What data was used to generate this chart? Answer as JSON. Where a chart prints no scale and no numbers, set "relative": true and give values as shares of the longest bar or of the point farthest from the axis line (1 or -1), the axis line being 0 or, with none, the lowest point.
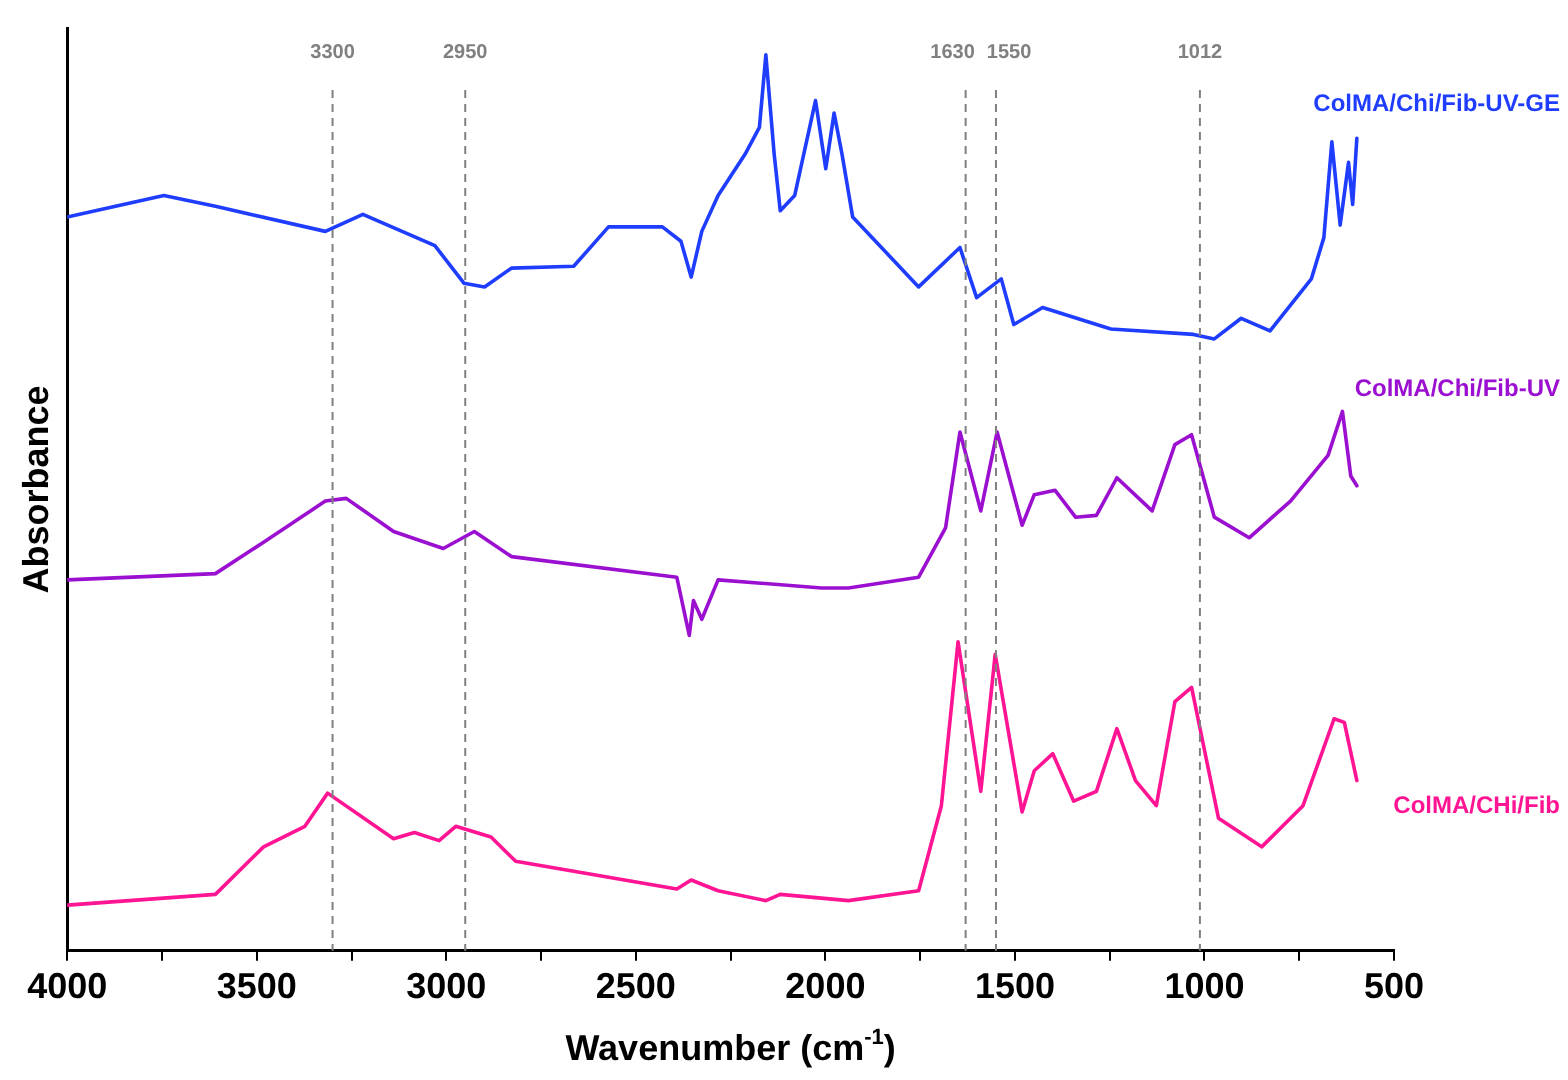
{
  "chart_data": {
    "type": "line",
    "relative": true,
    "xlabel": "Wavenumber (cm$^{-1}$)",
    "ylabel": "Absorbance",
    "xlim": [
      4000,
      500
    ],
    "xticks": [
      4000,
      {
        "value": 3750,
        "label": null
      },
      3500,
      {
        "value": 3250,
        "label": null
      },
      3000,
      {
        "value": 2750,
        "label": null
      },
      2500,
      {
        "value": 2250,
        "label": null
      },
      2000,
      {
        "value": 1750,
        "label": null
      },
      1500,
      {
        "value": 1250,
        "label": null
      },
      1000,
      {
        "value": 750,
        "label": null
      },
      500
    ],
    "grid": false,
    "legend": false,
    "marker": "none",
    "line_style": "solid",
    "ref_lines": [
      {
        "axis": "x",
        "value": 3300,
        "label": "3300",
        "color": "#808080",
        "line_style": "dashed"
      },
      {
        "axis": "x",
        "value": 2950,
        "label": "2950",
        "color": "#808080",
        "line_style": "dashed"
      },
      {
        "axis": "x",
        "value": 1630,
        "label": "1630",
        "color": "#808080",
        "line_style": "dashed"
      },
      {
        "axis": "x",
        "value": 1550,
        "label": "1550",
        "color": "#808080",
        "line_style": "dashed"
      },
      {
        "axis": "x",
        "value": 1012,
        "label": "1012",
        "color": "#808080",
        "line_style": "dashed"
      }
    ],
    "series": [
      {
        "name": "ColMA/Chi/Fib-UV-GE",
        "color": "#1f3dff",
        "x": [
          4000,
          3745,
          3609,
          3319,
          3220,
          3030,
          2953,
          2899,
          2828,
          2664,
          2572,
          2430,
          2381,
          2354,
          2326,
          2283,
          2212,
          2174,
          2157,
          2135,
          2119,
          2081,
          2026,
          1999,
          1977,
          1956,
          1928,
          1754,
          1645,
          1601,
          1536,
          1503,
          1427,
          1247,
          1029,
          974,
          903,
          827,
          718,
          685,
          664,
          642,
          620,
          609,
          598
        ],
        "values": [
          0.819,
          0.843,
          0.831,
          0.803,
          0.822,
          0.787,
          0.745,
          0.741,
          0.762,
          0.764,
          0.808,
          0.808,
          0.792,
          0.752,
          0.803,
          0.843,
          0.889,
          0.919,
          1.0,
          0.889,
          0.826,
          0.843,
          0.949,
          0.873,
          0.935,
          0.889,
          0.819,
          0.741,
          0.785,
          0.729,
          0.75,
          0.699,
          0.718,
          0.694,
          0.688,
          0.683,
          0.706,
          0.692,
          0.75,
          0.796,
          0.903,
          0.81,
          0.88,
          0.833,
          0.907
        ]
      },
      {
        "name": "ColMA/Chi/Fib-UV",
        "color": "#9b10d0",
        "x": [
          4000,
          3609,
          3482,
          3319,
          3264,
          3139,
          3008,
          2926,
          2828,
          2392,
          2359,
          2348,
          2326,
          2283,
          2010,
          1939,
          1754,
          1683,
          1645,
          1590,
          1547,
          1481,
          1449,
          1394,
          1340,
          1285,
          1231,
          1138,
          1078,
          1034,
          974,
          882,
          773,
          674,
          636,
          614,
          598
        ],
        "values": [
          0.414,
          0.421,
          0.456,
          0.502,
          0.505,
          0.468,
          0.449,
          0.468,
          0.44,
          0.417,
          0.352,
          0.391,
          0.37,
          0.414,
          0.405,
          0.405,
          0.417,
          0.472,
          0.579,
          0.491,
          0.579,
          0.475,
          0.509,
          0.514,
          0.484,
          0.486,
          0.528,
          0.491,
          0.565,
          0.576,
          0.484,
          0.461,
          0.502,
          0.553,
          0.602,
          0.53,
          0.519
        ]
      },
      {
        "name": "ColMA/CHi/Fib",
        "color": "#ff1493",
        "x": [
          4000,
          3609,
          3482,
          3373,
          3313,
          3139,
          3084,
          3019,
          2975,
          2882,
          2817,
          2392,
          2354,
          2283,
          2157,
          2119,
          1939,
          1754,
          1694,
          1650,
          1590,
          1552,
          1481,
          1449,
          1400,
          1345,
          1285,
          1231,
          1182,
          1127,
          1078,
          1034,
          963,
          849,
          740,
          658,
          631,
          598
        ],
        "values": [
          0.051,
          0.063,
          0.116,
          0.139,
          0.176,
          0.125,
          0.132,
          0.123,
          0.139,
          0.127,
          0.1,
          0.069,
          0.079,
          0.067,
          0.056,
          0.063,
          0.056,
          0.067,
          0.162,
          0.345,
          0.178,
          0.331,
          0.155,
          0.201,
          0.22,
          0.167,
          0.178,
          0.248,
          0.19,
          0.162,
          0.278,
          0.294,
          0.148,
          0.116,
          0.162,
          0.259,
          0.255,
          0.19
        ]
      }
    ]
  }
}
